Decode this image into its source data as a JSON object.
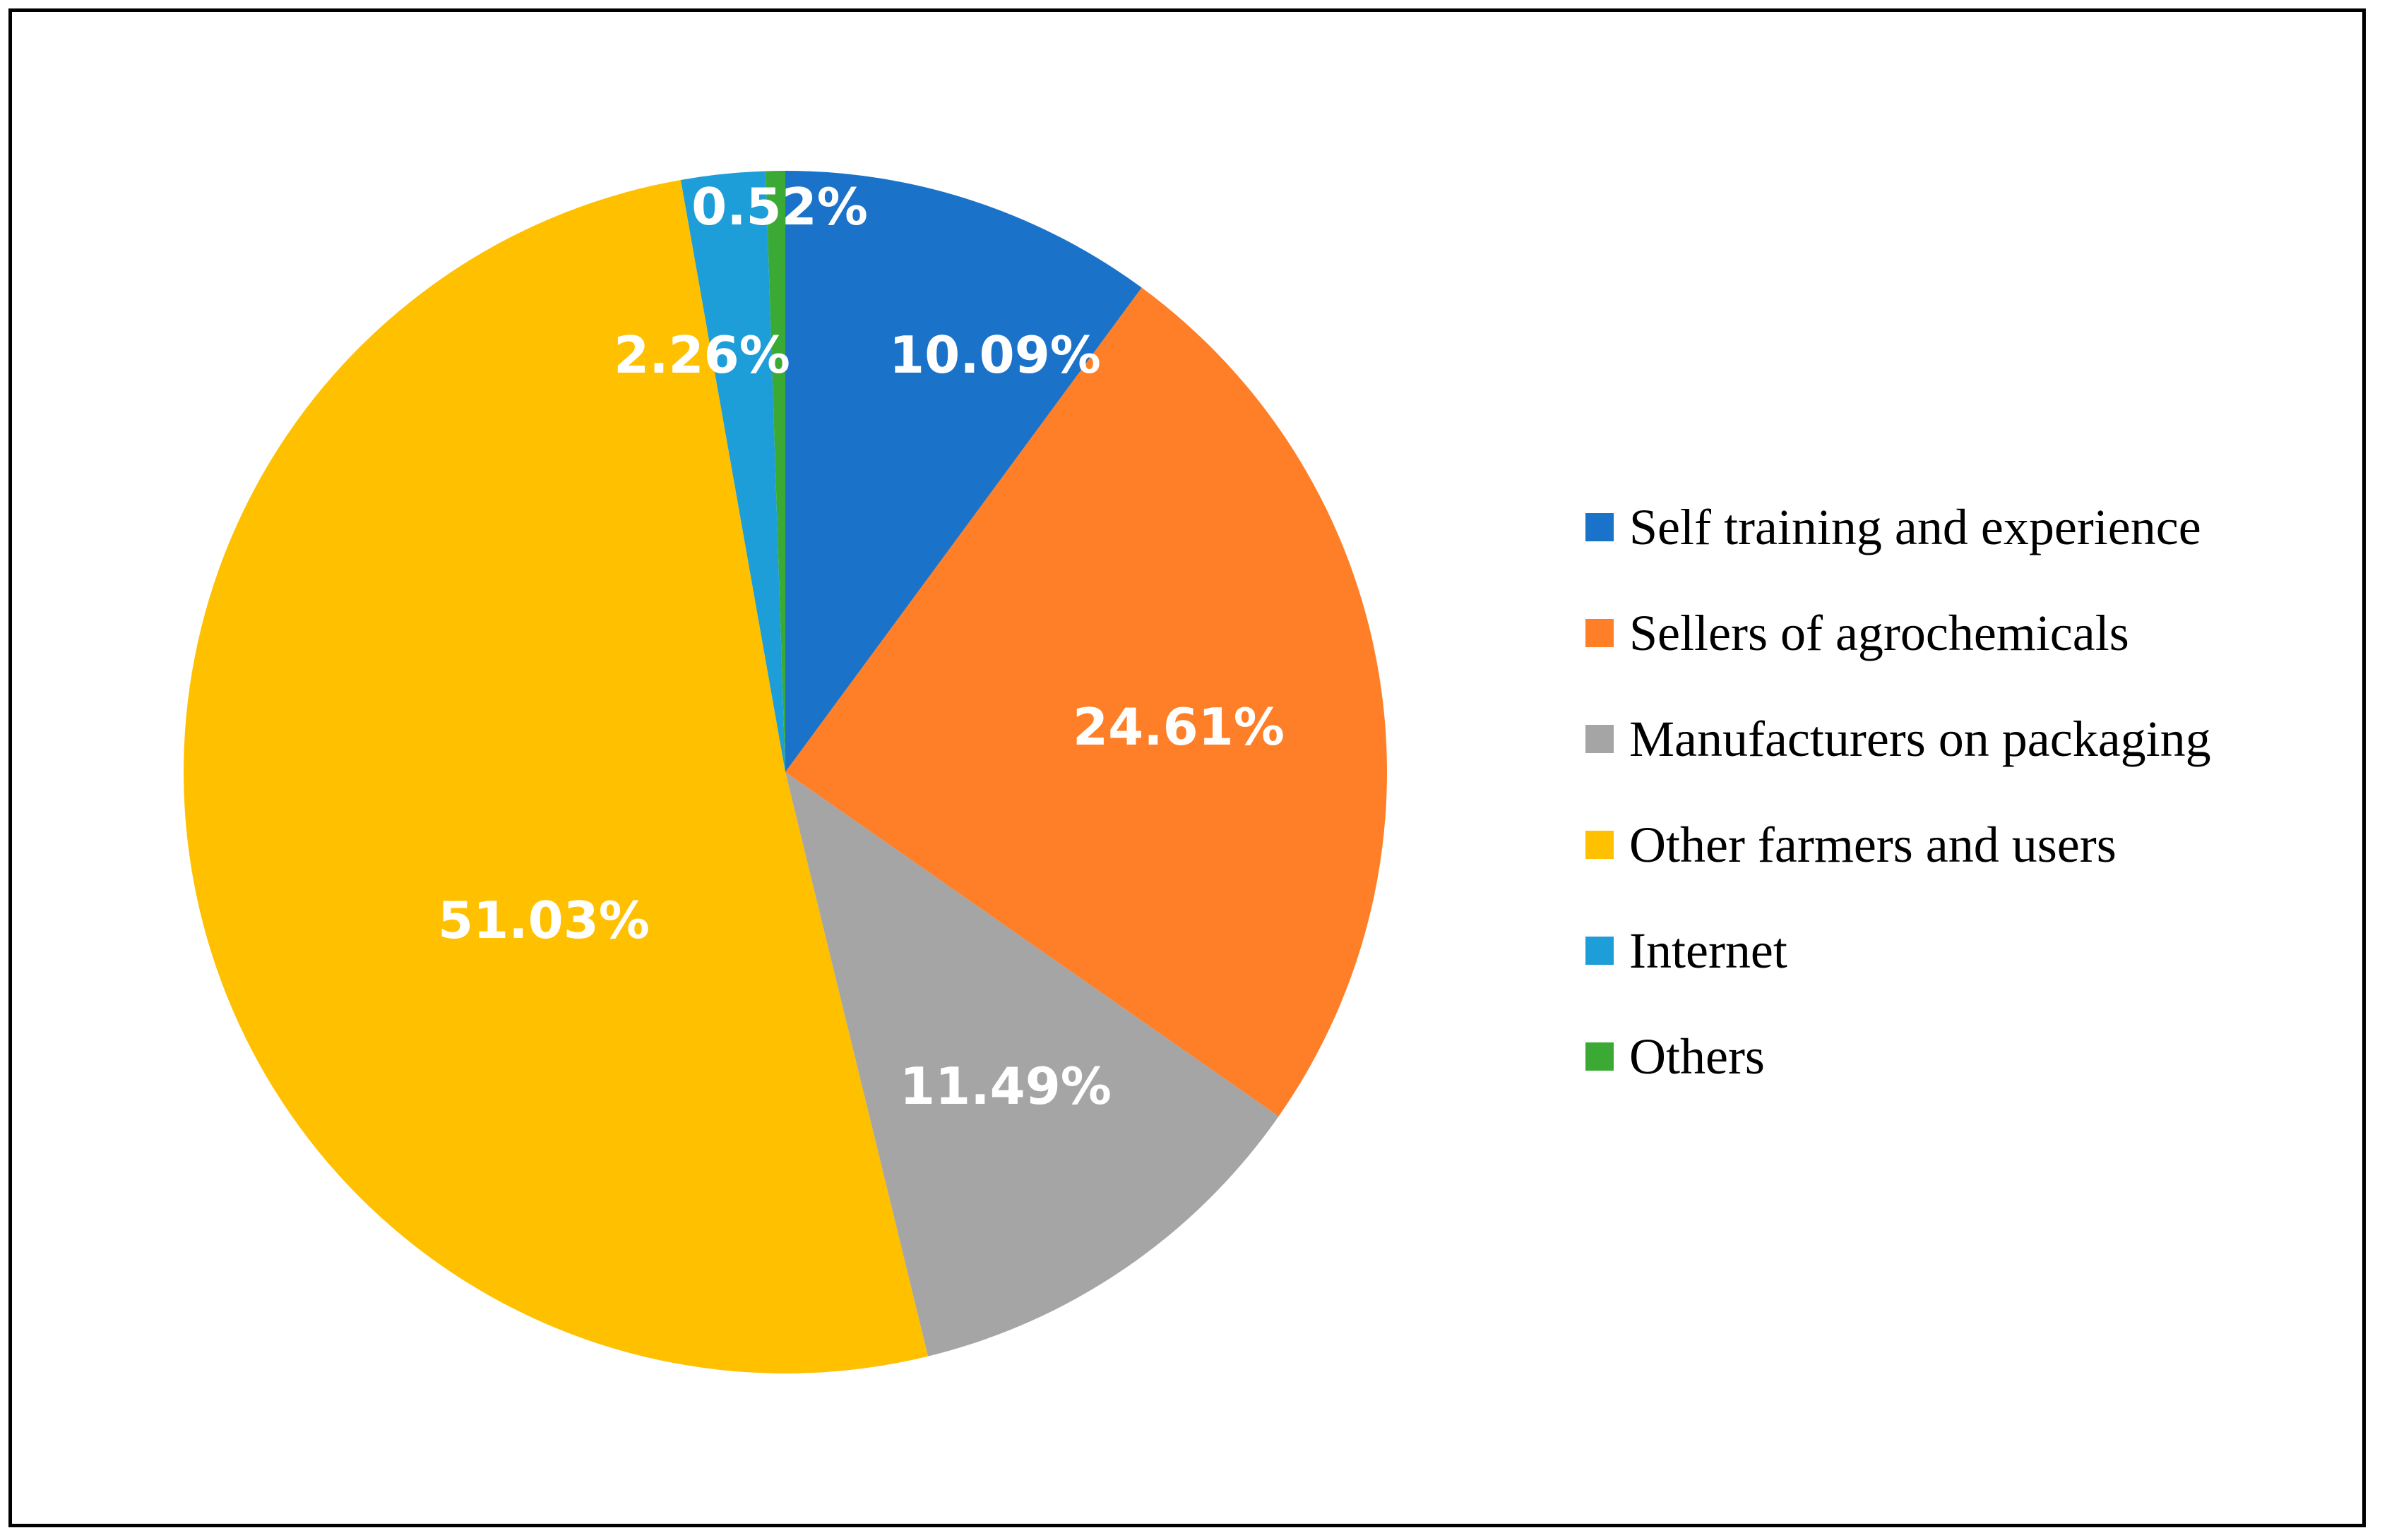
{
  "chart_data": {
    "type": "pie",
    "start_angle_deg": 0,
    "direction": "clockwise",
    "slices": [
      {
        "name": "Self training and experience",
        "value": 10.09,
        "label": "10.09%",
        "color": "#1A73C9"
      },
      {
        "name": "Sellers of agrochemicals",
        "value": 24.61,
        "label": "24.61%",
        "color": "#FE7F27"
      },
      {
        "name": "Manufacturers on packaging",
        "value": 11.49,
        "label": "11.49%",
        "color": "#A5A5A5"
      },
      {
        "name": "Other farmers and users",
        "value": 51.03,
        "label": "51.03%",
        "color": "#FFC000"
      },
      {
        "name": "Internet",
        "value": 2.26,
        "label": "2.26%",
        "color": "#1E9ED9"
      },
      {
        "name": "Others",
        "value": 0.52,
        "label": "0.52%",
        "color": "#3BAA35"
      }
    ],
    "legend_position": "right"
  }
}
